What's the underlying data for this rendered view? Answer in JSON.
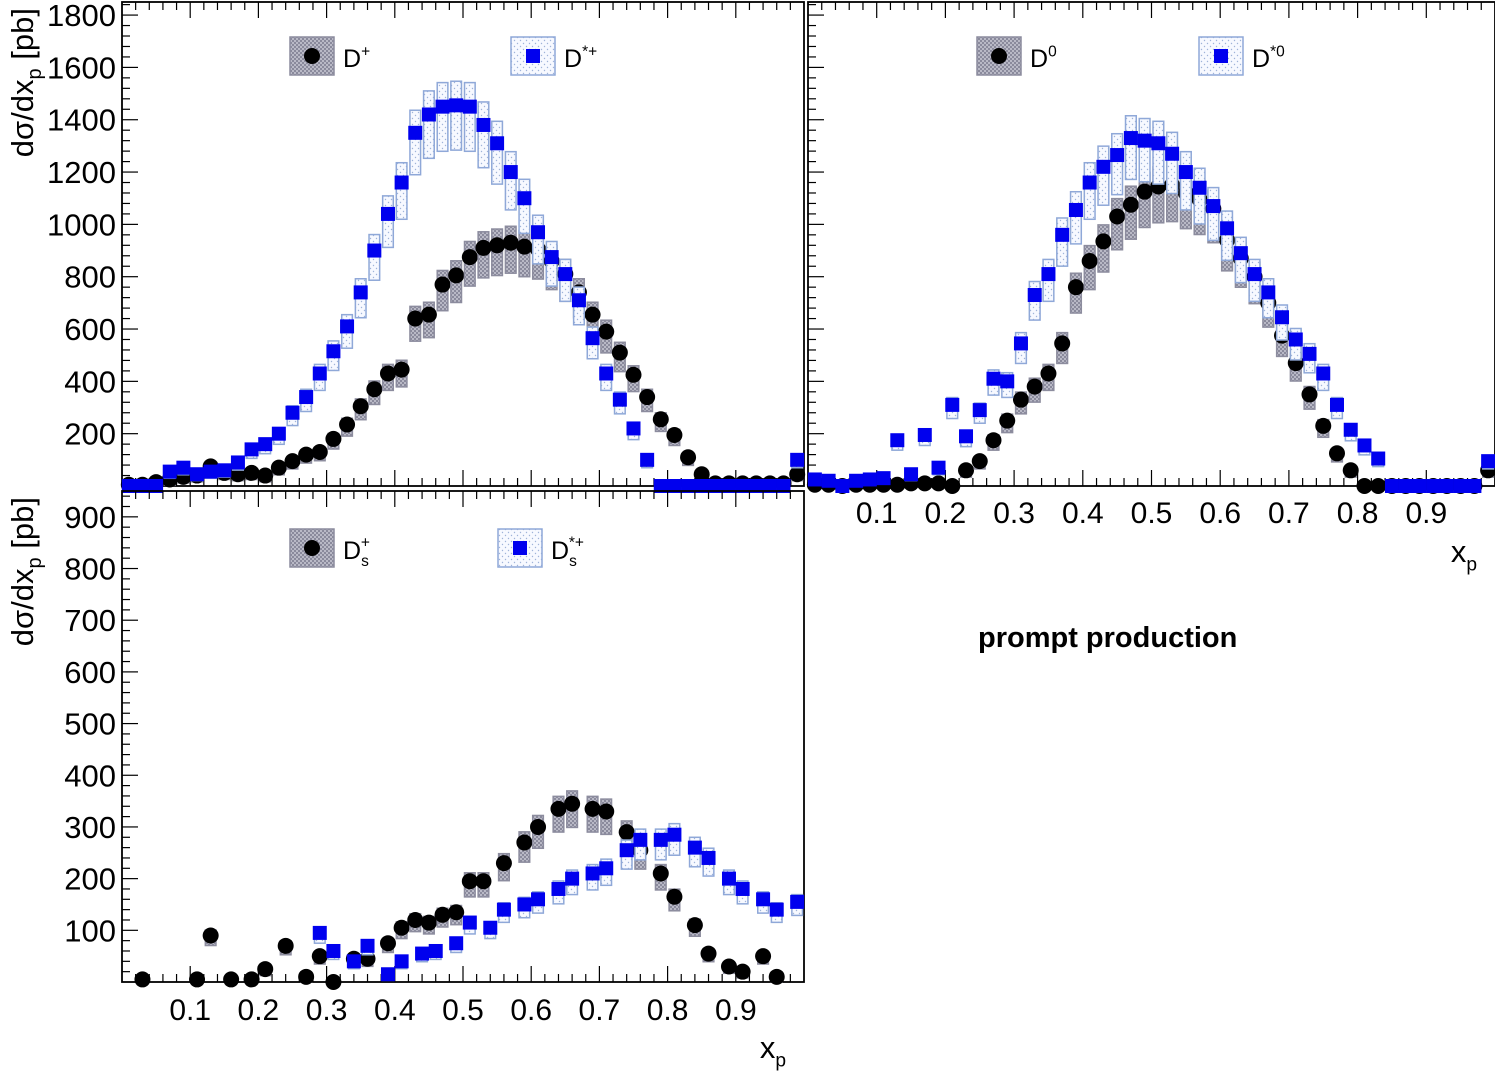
{
  "annotation": "prompt production",
  "colors": {
    "neutral_marker": "#000000",
    "excited_marker": "#0000ee",
    "neutral_box": "#8c8c9e",
    "excited_box": "#8fa8d8"
  },
  "chart_data": [
    {
      "type": "scatter",
      "id": "dplus",
      "ylabel": "dσ/dx_p [pb]",
      "xlabel": "",
      "xlim": [
        0,
        1
      ],
      "ylim": [
        0,
        1850
      ],
      "yticks": [
        200,
        400,
        600,
        800,
        1000,
        1200,
        1400,
        1600,
        1800
      ],
      "xticks": [],
      "series": [
        {
          "name": "D+",
          "legend_main": "D",
          "legend_sup": "+",
          "legend_sub": "",
          "marker": "circle",
          "x": [
            0.01,
            0.03,
            0.05,
            0.07,
            0.09,
            0.11,
            0.13,
            0.15,
            0.17,
            0.19,
            0.21,
            0.23,
            0.25,
            0.27,
            0.29,
            0.31,
            0.33,
            0.35,
            0.37,
            0.39,
            0.41,
            0.43,
            0.45,
            0.47,
            0.49,
            0.51,
            0.53,
            0.55,
            0.57,
            0.59,
            0.61,
            0.63,
            0.65,
            0.67,
            0.69,
            0.71,
            0.73,
            0.75,
            0.77,
            0.79,
            0.81,
            0.83,
            0.85,
            0.87,
            0.89,
            0.91,
            0.93,
            0.95,
            0.97,
            0.99
          ],
          "y": [
            5,
            5,
            15,
            25,
            35,
            40,
            75,
            50,
            45,
            50,
            40,
            70,
            95,
            120,
            130,
            180,
            235,
            305,
            370,
            430,
            445,
            640,
            655,
            770,
            805,
            875,
            910,
            920,
            930,
            915,
            905,
            860,
            810,
            740,
            655,
            590,
            510,
            425,
            340,
            255,
            195,
            110,
            45,
            10,
            10,
            10,
            10,
            10,
            10,
            45
          ]
        },
        {
          "name": "D*+",
          "legend_main": "D",
          "legend_sup": "*+",
          "legend_sub": "",
          "marker": "square",
          "x": [
            0.01,
            0.03,
            0.05,
            0.07,
            0.09,
            0.11,
            0.13,
            0.15,
            0.17,
            0.19,
            0.21,
            0.23,
            0.25,
            0.27,
            0.29,
            0.31,
            0.33,
            0.35,
            0.37,
            0.39,
            0.41,
            0.43,
            0.45,
            0.47,
            0.49,
            0.51,
            0.53,
            0.55,
            0.57,
            0.59,
            0.61,
            0.63,
            0.65,
            0.67,
            0.69,
            0.71,
            0.73,
            0.75,
            0.77,
            0.79,
            0.81,
            0.83,
            0.85,
            0.87,
            0.89,
            0.91,
            0.93,
            0.95,
            0.97,
            0.99
          ],
          "y": [
            0,
            0,
            0,
            55,
            70,
            45,
            55,
            60,
            90,
            140,
            160,
            200,
            280,
            340,
            430,
            515,
            610,
            740,
            900,
            1040,
            1160,
            1350,
            1420,
            1450,
            1455,
            1450,
            1380,
            1310,
            1200,
            1100,
            970,
            875,
            810,
            710,
            565,
            430,
            330,
            220,
            100,
            0,
            0,
            0,
            0,
            0,
            0,
            0,
            0,
            0,
            0,
            100
          ]
        }
      ]
    },
    {
      "type": "scatter",
      "id": "dzero",
      "ylabel": "",
      "xlabel": "x_p",
      "xlim": [
        0,
        1
      ],
      "ylim": [
        0,
        1850
      ],
      "yticks": [],
      "xticks": [
        0.1,
        0.2,
        0.3,
        0.4,
        0.5,
        0.6,
        0.7,
        0.8,
        0.9
      ],
      "series": [
        {
          "name": "D0",
          "legend_main": "D",
          "legend_sup": "0",
          "legend_sub": "",
          "marker": "circle",
          "x": [
            0.01,
            0.03,
            0.05,
            0.07,
            0.09,
            0.11,
            0.13,
            0.15,
            0.17,
            0.19,
            0.21,
            0.23,
            0.25,
            0.27,
            0.29,
            0.31,
            0.33,
            0.35,
            0.37,
            0.39,
            0.41,
            0.43,
            0.45,
            0.47,
            0.49,
            0.51,
            0.53,
            0.55,
            0.57,
            0.59,
            0.61,
            0.63,
            0.65,
            0.67,
            0.69,
            0.71,
            0.73,
            0.75,
            0.77,
            0.79,
            0.81,
            0.83,
            0.85,
            0.87,
            0.89,
            0.91,
            0.93,
            0.95,
            0.97,
            0.99
          ],
          "y": [
            5,
            5,
            0,
            5,
            5,
            5,
            5,
            10,
            10,
            10,
            0,
            60,
            95,
            175,
            250,
            330,
            380,
            430,
            545,
            760,
            860,
            935,
            1030,
            1075,
            1125,
            1145,
            1150,
            1120,
            1095,
            1060,
            940,
            870,
            800,
            700,
            575,
            470,
            350,
            230,
            125,
            60,
            0,
            0,
            0,
            0,
            0,
            0,
            0,
            0,
            0,
            60
          ]
        },
        {
          "name": "D*0",
          "legend_main": "D",
          "legend_sup": "*0",
          "legend_sub": "",
          "marker": "square",
          "x": [
            0.01,
            0.03,
            0.05,
            0.07,
            0.09,
            0.11,
            0.13,
            0.15,
            0.17,
            0.19,
            0.21,
            0.23,
            0.25,
            0.27,
            0.29,
            0.31,
            0.33,
            0.35,
            0.37,
            0.39,
            0.41,
            0.43,
            0.45,
            0.47,
            0.49,
            0.51,
            0.53,
            0.55,
            0.57,
            0.59,
            0.61,
            0.63,
            0.65,
            0.67,
            0.69,
            0.71,
            0.73,
            0.75,
            0.77,
            0.79,
            0.81,
            0.83,
            0.85,
            0.87,
            0.89,
            0.91,
            0.93,
            0.95,
            0.97,
            0.99
          ],
          "y": [
            25,
            20,
            0,
            20,
            25,
            30,
            175,
            45,
            195,
            70,
            310,
            190,
            290,
            410,
            400,
            545,
            730,
            810,
            960,
            1055,
            1160,
            1220,
            1265,
            1330,
            1320,
            1310,
            1270,
            1200,
            1140,
            1070,
            985,
            890,
            810,
            740,
            645,
            560,
            505,
            430,
            310,
            215,
            155,
            105,
            0,
            0,
            0,
            0,
            0,
            0,
            0,
            95
          ]
        }
      ]
    },
    {
      "type": "scatter",
      "id": "ds",
      "ylabel": "dσ/dx_p [pb]",
      "xlabel": "x_p",
      "xlim": [
        0,
        1
      ],
      "ylim": [
        0,
        950
      ],
      "yticks": [
        100,
        200,
        300,
        400,
        500,
        600,
        700,
        800,
        900
      ],
      "xticks": [
        0.1,
        0.2,
        0.3,
        0.4,
        0.5,
        0.6,
        0.7,
        0.8,
        0.9
      ],
      "series": [
        {
          "name": "Ds+",
          "legend_main": "D",
          "legend_sup": "+",
          "legend_sub": "s",
          "marker": "circle",
          "x": [
            0.03,
            0.11,
            0.13,
            0.16,
            0.19,
            0.21,
            0.24,
            0.27,
            0.29,
            0.31,
            0.34,
            0.36,
            0.39,
            0.41,
            0.43,
            0.45,
            0.47,
            0.49,
            0.51,
            0.53,
            0.56,
            0.59,
            0.61,
            0.64,
            0.66,
            0.69,
            0.71,
            0.74,
            0.76,
            0.79,
            0.81,
            0.84,
            0.86,
            0.89,
            0.91,
            0.94,
            0.96
          ],
          "y": [
            5,
            5,
            90,
            5,
            5,
            25,
            70,
            10,
            50,
            0,
            45,
            45,
            75,
            105,
            120,
            115,
            130,
            135,
            195,
            195,
            230,
            270,
            300,
            335,
            345,
            335,
            330,
            290,
            255,
            210,
            165,
            110,
            55,
            30,
            20,
            50,
            10
          ]
        },
        {
          "name": "Ds*+",
          "legend_main": "D",
          "legend_sup": "*+",
          "legend_sub": "s",
          "marker": "square",
          "x": [
            0.29,
            0.31,
            0.34,
            0.36,
            0.39,
            0.41,
            0.44,
            0.46,
            0.49,
            0.51,
            0.54,
            0.56,
            0.59,
            0.61,
            0.64,
            0.66,
            0.69,
            0.71,
            0.74,
            0.76,
            0.79,
            0.81,
            0.84,
            0.86,
            0.89,
            0.91,
            0.94,
            0.96,
            0.99
          ],
          "y": [
            95,
            60,
            40,
            70,
            15,
            40,
            55,
            60,
            75,
            115,
            105,
            140,
            150,
            160,
            180,
            200,
            210,
            220,
            255,
            275,
            275,
            285,
            260,
            240,
            200,
            180,
            160,
            140,
            155
          ]
        }
      ]
    }
  ]
}
